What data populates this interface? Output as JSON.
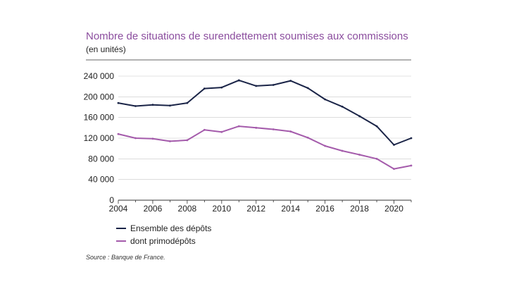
{
  "chart_data": {
    "type": "line",
    "title": "Nombre de situations de surendettement soumises aux commissions",
    "subtitle": "(en unités)",
    "x": [
      2004,
      2005,
      2006,
      2007,
      2008,
      2009,
      2010,
      2011,
      2012,
      2013,
      2014,
      2015,
      2016,
      2017,
      2018,
      2019,
      2020,
      2021
    ],
    "x_tick_labels": [
      "2004",
      "2006",
      "2008",
      "2010",
      "2012",
      "2014",
      "2016",
      "2018",
      "2020"
    ],
    "y_tick_labels": [
      "0",
      "40 000",
      "80 000",
      "120 000",
      "160 000",
      "200 000",
      "240 000"
    ],
    "ylim": [
      0,
      240000
    ],
    "series": [
      {
        "name": "Ensemble des dépôts",
        "color": "#1a2447",
        "values": [
          188000,
          182000,
          184500,
          183000,
          188000,
          216000,
          218000,
          232000,
          221000,
          223000,
          231000,
          217000,
          195000,
          181000,
          162500,
          143000,
          107000,
          120000
        ]
      },
      {
        "name": "dont primodépôts",
        "color": "#a45bab",
        "values": [
          128000,
          120000,
          119000,
          114000,
          116000,
          136000,
          132000,
          143000,
          140000,
          137000,
          133000,
          121000,
          105000,
          95500,
          88000,
          80000,
          60500,
          67000
        ]
      }
    ],
    "legend_position": "bottom-left",
    "source": "Source : Banque de France."
  }
}
